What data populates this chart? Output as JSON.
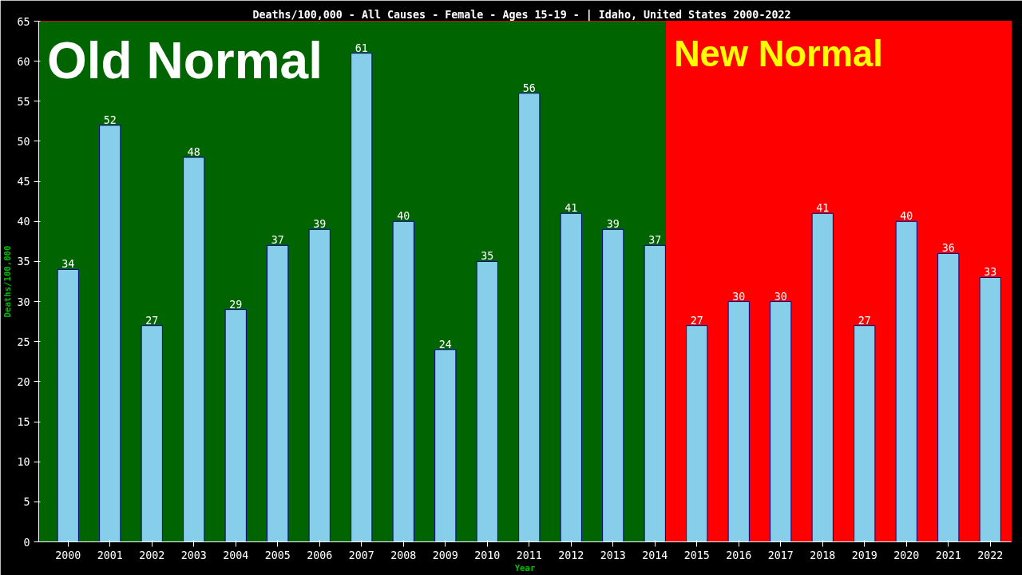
{
  "chart_data": {
    "type": "bar",
    "title": "Deaths/100,000 - All Causes - Female - Ages 15-19 -  | Idaho, United States 2000-2022",
    "xlabel": "Year",
    "ylabel": "Deaths/100,000",
    "x": [
      2000,
      2001,
      2002,
      2003,
      2004,
      2005,
      2006,
      2007,
      2008,
      2009,
      2010,
      2011,
      2012,
      2013,
      2014,
      2015,
      2016,
      2017,
      2018,
      2019,
      2020,
      2021,
      2022
    ],
    "series": [
      {
        "color": "#87ceeb",
        "values": [
          34,
          52,
          27,
          48,
          29,
          37,
          39,
          61,
          40,
          24,
          35,
          56,
          41,
          39,
          37,
          27,
          30,
          30,
          41,
          27,
          40,
          36,
          33
        ]
      }
    ],
    "data_labels": true,
    "xlim": [
      1999.3,
      2022.5
    ],
    "xticks": [
      2000,
      2001,
      2002,
      2003,
      2004,
      2005,
      2006,
      2007,
      2008,
      2009,
      2010,
      2011,
      2012,
      2013,
      2014,
      2015,
      2016,
      2017,
      2018,
      2019,
      2020,
      2021,
      2022
    ],
    "ylim": [
      0,
      65
    ],
    "yticks": [
      0,
      5,
      10,
      15,
      20,
      25,
      30,
      35,
      40,
      45,
      50,
      55,
      60,
      65
    ],
    "grid": false,
    "bands": [
      {
        "axis": "x",
        "from": 1999.3,
        "to": 2014.25,
        "label": "Old Normal",
        "color": "#006400"
      },
      {
        "axis": "x",
        "from": 2014.25,
        "to": 2022.5,
        "label": "New Normal",
        "color": "#ff0000"
      }
    ]
  }
}
